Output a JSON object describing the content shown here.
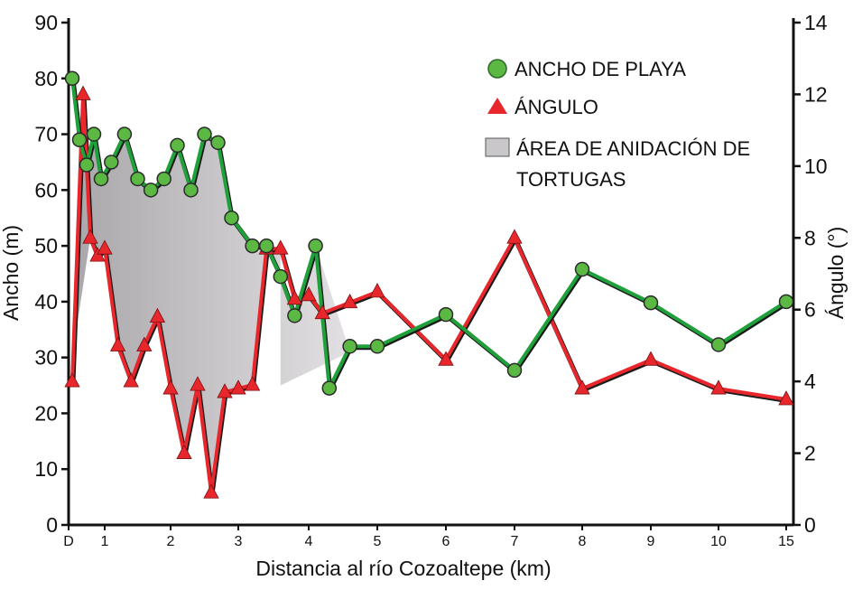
{
  "chart_data": {
    "type": "line",
    "title": "",
    "xlabel": "Distancia al río Cozoaltepe (km)",
    "ylabel_left": "Ancho (m)",
    "ylabel_right": "Ángulo (°)",
    "ylim_left": [
      0,
      90
    ],
    "ylim_right": [
      0,
      14
    ],
    "x_ticks": [
      {
        "label": "D",
        "km": 0
      },
      {
        "label": "1",
        "km": 1
      },
      {
        "label": "2",
        "km": 2
      },
      {
        "label": "3",
        "km": 3
      },
      {
        "label": "4",
        "km": 4
      },
      {
        "label": "5",
        "km": 5
      },
      {
        "label": "6",
        "km": 6
      },
      {
        "label": "7",
        "km": 7
      },
      {
        "label": "8",
        "km": 8
      },
      {
        "label": "9",
        "km": 9
      },
      {
        "label": "10",
        "km": 10
      },
      {
        "label": "15",
        "km": 15
      }
    ],
    "y_left_ticks": [
      "0",
      "10",
      "20",
      "30",
      "40",
      "50",
      "60",
      "70",
      "80",
      "90"
    ],
    "y_right_ticks": [
      "0",
      "2",
      "4",
      "6",
      "8",
      "10",
      "12",
      "14"
    ],
    "series": [
      {
        "name": "ANCHO DE PLAYA",
        "axis": "left",
        "color": "#1fa03a",
        "marker": "circle",
        "marker_color": "#5ab843",
        "points": [
          [
            0.1,
            80
          ],
          [
            0.3,
            69
          ],
          [
            0.5,
            64.5
          ],
          [
            0.7,
            70
          ],
          [
            0.9,
            62
          ],
          [
            1.1,
            65
          ],
          [
            1.3,
            70
          ],
          [
            1.5,
            62
          ],
          [
            1.7,
            60
          ],
          [
            1.9,
            62
          ],
          [
            2.1,
            68
          ],
          [
            2.3,
            60
          ],
          [
            2.5,
            70
          ],
          [
            2.7,
            68.5
          ],
          [
            2.9,
            55
          ],
          [
            3.2,
            50
          ],
          [
            3.4,
            50
          ],
          [
            3.6,
            44.5
          ],
          [
            3.8,
            37.5
          ],
          [
            4.1,
            50
          ],
          [
            4.3,
            24.5
          ],
          [
            4.6,
            32
          ],
          [
            5.0,
            32
          ],
          [
            6.0,
            37.7
          ],
          [
            7.0,
            27.7
          ],
          [
            8.0,
            45.8
          ],
          [
            9.0,
            39.8
          ],
          [
            10.0,
            32.3
          ],
          [
            15.0,
            40
          ]
        ]
      },
      {
        "name": "ÁNGULO",
        "axis": "right",
        "color": "#e8272d",
        "marker": "triangle",
        "marker_color": "#e8272d",
        "points": [
          [
            0.1,
            4.0
          ],
          [
            0.4,
            12.0
          ],
          [
            0.6,
            8.0
          ],
          [
            0.8,
            7.5
          ],
          [
            1.0,
            7.7
          ],
          [
            1.2,
            5.0
          ],
          [
            1.4,
            4.0
          ],
          [
            1.6,
            5.0
          ],
          [
            1.8,
            5.8
          ],
          [
            2.0,
            3.8
          ],
          [
            2.2,
            2.0
          ],
          [
            2.4,
            3.9
          ],
          [
            2.6,
            0.9
          ],
          [
            2.8,
            3.7
          ],
          [
            3.0,
            3.8
          ],
          [
            3.2,
            3.9
          ],
          [
            3.4,
            7.7
          ],
          [
            3.6,
            7.7
          ],
          [
            3.8,
            6.3
          ],
          [
            4.0,
            6.4
          ],
          [
            4.2,
            5.9
          ],
          [
            4.6,
            6.2
          ],
          [
            5.0,
            6.5
          ],
          [
            6.0,
            4.6
          ],
          [
            7.0,
            8.0
          ],
          [
            8.0,
            3.8
          ],
          [
            9.0,
            4.6
          ],
          [
            10.0,
            3.8
          ],
          [
            15.0,
            3.5
          ]
        ]
      }
    ],
    "shaded_area": {
      "name": "ÁREA DE ANIDACIÓN DE TORTUGAS",
      "fill": "#b8b6b8",
      "description_in_legend": true
    },
    "legend": {
      "position": "top-right",
      "items": [
        {
          "label": "ANCHO DE PLAYA",
          "symbol": "circle"
        },
        {
          "label": "ÁNGULO",
          "symbol": "triangle"
        },
        {
          "label": "ÁREA DE ANIDACIÓN DE",
          "symbol": "rect"
        },
        {
          "label": "TORTUGAS",
          "symbol": "none"
        }
      ]
    }
  }
}
